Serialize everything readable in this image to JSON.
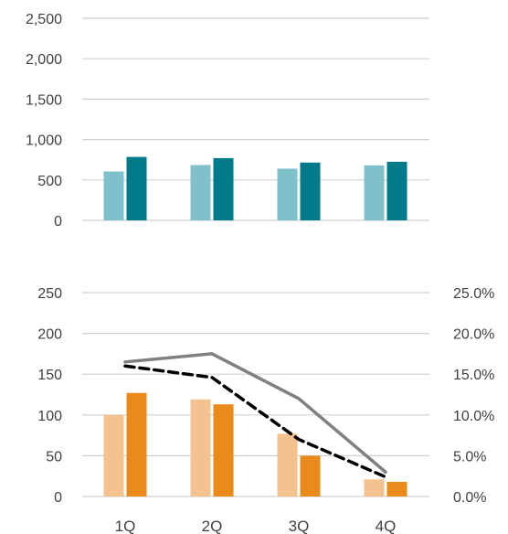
{
  "chart_data": [
    {
      "type": "bar",
      "categories": [
        "1Q",
        "2Q",
        "3Q",
        "4Q"
      ],
      "series": [
        {
          "values": [
            605,
            685,
            640,
            680
          ]
        },
        {
          "values": [
            785,
            770,
            715,
            725
          ]
        }
      ],
      "ylim": [
        0,
        2500
      ],
      "yticks": [
        "2,500",
        "2,000",
        "1,500",
        "1,000",
        "500",
        "0"
      ],
      "grid": true,
      "colors": [
        "#7fc1cb",
        "#017a8a"
      ]
    },
    {
      "type": "bar",
      "categories": [
        "1Q",
        "2Q",
        "3Q",
        "4Q"
      ],
      "series": [
        {
          "type": "bar",
          "axis": "left",
          "values": [
            100,
            119,
            77,
            21
          ]
        },
        {
          "type": "bar",
          "axis": "left",
          "values": [
            127,
            113,
            50,
            18
          ]
        },
        {
          "type": "line",
          "axis": "right",
          "style": "solid",
          "values": [
            0.165,
            0.175,
            0.12,
            0.03
          ]
        },
        {
          "type": "line",
          "axis": "right",
          "style": "dashed",
          "values": [
            0.16,
            0.146,
            0.07,
            0.024
          ]
        }
      ],
      "ylim_left": [
        0,
        250
      ],
      "ylim_right": [
        0,
        0.25
      ],
      "yticks_left": [
        "250",
        "200",
        "150",
        "100",
        "50",
        "0"
      ],
      "yticks_right": [
        "25.0%",
        "20.0%",
        "15.0%",
        "10.0%",
        "5.0%",
        "0.0%"
      ],
      "xticks": [
        "1Q",
        "2Q",
        "3Q",
        "4Q"
      ],
      "grid": true,
      "colors": [
        "#f4c28e",
        "#ea8a1b",
        "#808080",
        "#000000"
      ]
    }
  ]
}
